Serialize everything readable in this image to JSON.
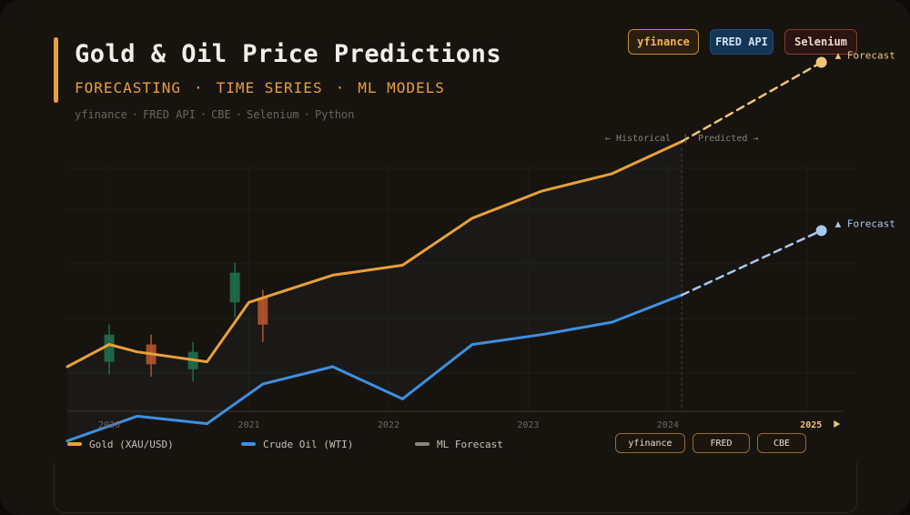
{
  "header": {
    "title": "Gold & Oil Price Predictions",
    "subtitle_parts": [
      "FORECASTING",
      "TIME SERIES",
      "ML MODELS"
    ],
    "subtitle_separator": "·",
    "tech_stack": [
      "yfinance",
      "FRED API",
      "CBE",
      "Selenium",
      "Python"
    ],
    "tech_separator": "·"
  },
  "badges": {
    "yfinance": "yfinance",
    "fred": "FRED API",
    "selenium": "Selenium"
  },
  "legend": {
    "gold": "Gold (XAU/USD)",
    "oil": "Crude Oil (WTI)",
    "forecast": "ML Forecast"
  },
  "sources": {
    "yfinance": "yfinance",
    "fred": "FRED",
    "cbe": "CBE"
  },
  "colors": {
    "gold": "#e8a03a",
    "oil": "#3f8fe0",
    "gold_forecast": "#f1c47a",
    "oil_forecast": "#a9c8ee",
    "forecast_legend": "#8a867d",
    "candle_up": "#1f6e4a",
    "candle_down": "#b4552e"
  },
  "chart_data": {
    "type": "line",
    "x_range": [
      2019.7,
      2025.35
    ],
    "y_range": [
      0,
      100
    ],
    "x_ticks": [
      "2020",
      "2021",
      "2022",
      "2023",
      "2024",
      "2025"
    ],
    "highlight_tick": "2025",
    "divider_x": 2024.1,
    "divider_label_left": "← Historical",
    "divider_label_sep": "|",
    "divider_label_right": "Predicted →",
    "series": [
      {
        "name": "Gold (XAU/USD)",
        "key": "gold",
        "x": [
          2019.7,
          2020.0,
          2020.2,
          2020.7,
          2021.0,
          2021.6,
          2022.1,
          2022.6,
          2023.1,
          2023.6,
          2024.1
        ],
        "y": [
          18,
          27,
          24,
          20,
          44,
          55,
          59,
          78,
          89,
          96,
          109
        ],
        "forecast_x": [
          2024.1,
          2025.1
        ],
        "forecast_y": [
          109,
          141
        ],
        "forecast_label": "▲ Forecast"
      },
      {
        "name": "Crude Oil (WTI)",
        "key": "oil",
        "x": [
          2019.7,
          2020.2,
          2020.7,
          2021.1,
          2021.6,
          2022.1,
          2022.6,
          2023.1,
          2023.6,
          2024.1
        ],
        "y": [
          -12,
          -2,
          -5,
          11,
          18,
          5,
          27,
          31,
          36,
          47
        ],
        "forecast_x": [
          2024.1,
          2025.1
        ],
        "forecast_y": [
          47,
          73
        ],
        "forecast_label": "▲ Forecast"
      }
    ],
    "candles": [
      {
        "x": 2020.0,
        "open": 20,
        "close": 31,
        "high": 35,
        "low": 15,
        "dir": "up"
      },
      {
        "x": 2020.3,
        "open": 27,
        "close": 19,
        "high": 31,
        "low": 14,
        "dir": "down"
      },
      {
        "x": 2020.6,
        "open": 17,
        "close": 24,
        "high": 28,
        "low": 12,
        "dir": "up"
      },
      {
        "x": 2020.9,
        "open": 44,
        "close": 56,
        "high": 60,
        "low": 38,
        "dir": "up"
      },
      {
        "x": 2021.1,
        "open": 46,
        "close": 35,
        "high": 49,
        "low": 28,
        "dir": "down"
      }
    ]
  }
}
